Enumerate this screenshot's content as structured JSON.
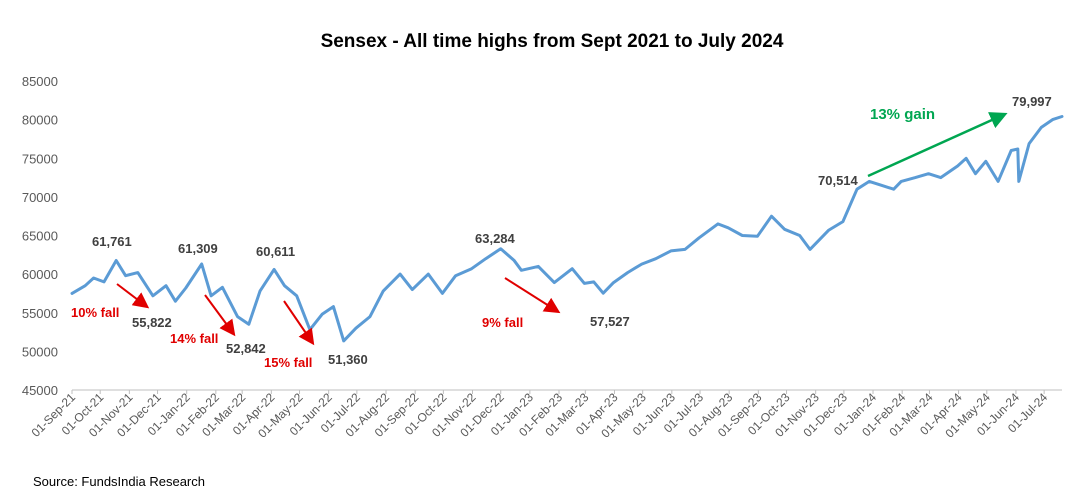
{
  "chart_data": {
    "type": "line",
    "title": "Sensex - All time highs from Sept 2021 to July 2024",
    "xlabel": "",
    "ylabel": "",
    "ylim": [
      45000,
      85000
    ],
    "yticks": [
      "85000",
      "80000",
      "75000",
      "70000",
      "65000",
      "60000",
      "55000",
      "50000",
      "45000"
    ],
    "x_range": [
      "2021-09-01",
      "2024-07-20"
    ],
    "xticks": [
      "01-Sep-21",
      "01-Oct-21",
      "01-Nov-21",
      "01-Dec-21",
      "01-Jan-22",
      "01-Feb-22",
      "01-Mar-22",
      "01-Apr-22",
      "01-May-22",
      "01-Jun-22",
      "01-Jul-22",
      "01-Aug-22",
      "01-Sep-22",
      "01-Oct-22",
      "01-Nov-22",
      "01-Dec-22",
      "01-Jan-23",
      "01-Feb-23",
      "01-Mar-23",
      "01-Apr-23",
      "01-May-23",
      "01-Jun-23",
      "01-Jul-23",
      "01-Aug-23",
      "01-Sep-23",
      "01-Oct-23",
      "01-Nov-23",
      "01-Dec-23",
      "01-Jan-24",
      "01-Feb-24",
      "01-Mar-24",
      "01-Apr-24",
      "01-May-24",
      "01-Jun-24",
      "01-Jul-24"
    ],
    "grid": false,
    "series_color": "#5b9bd5",
    "series": [
      {
        "name": "",
        "x": [
          "2021-09-01",
          "2021-09-15",
          "2021-09-24",
          "2021-10-05",
          "2021-10-18",
          "2021-10-28",
          "2021-11-10",
          "2021-11-26",
          "2021-12-10",
          "2021-12-20",
          "2021-12-31",
          "2022-01-17",
          "2022-01-27",
          "2022-02-08",
          "2022-02-24",
          "2022-03-08",
          "2022-03-20",
          "2022-04-04",
          "2022-04-15",
          "2022-04-28",
          "2022-05-12",
          "2022-05-25",
          "2022-06-06",
          "2022-06-17",
          "2022-06-30",
          "2022-07-15",
          "2022-07-29",
          "2022-08-16",
          "2022-08-29",
          "2022-09-15",
          "2022-09-30",
          "2022-10-14",
          "2022-10-31",
          "2022-11-15",
          "2022-12-01",
          "2022-12-15",
          "2022-12-23",
          "2023-01-10",
          "2023-01-27",
          "2023-02-15",
          "2023-02-28",
          "2023-03-10",
          "2023-03-20",
          "2023-03-31",
          "2023-04-15",
          "2023-04-30",
          "2023-05-15",
          "2023-05-31",
          "2023-06-15",
          "2023-06-30",
          "2023-07-20",
          "2023-07-31",
          "2023-08-15",
          "2023-08-31",
          "2023-09-15",
          "2023-09-29",
          "2023-10-15",
          "2023-10-26",
          "2023-11-15",
          "2023-11-30",
          "2023-12-15",
          "2023-12-28",
          "2024-01-10",
          "2024-01-23",
          "2024-01-31",
          "2024-02-15",
          "2024-02-29",
          "2024-03-13",
          "2024-03-31",
          "2024-04-09",
          "2024-04-19",
          "2024-04-30",
          "2024-05-13",
          "2024-05-27",
          "2024-06-03",
          "2024-06-04",
          "2024-06-15",
          "2024-06-28",
          "2024-07-10",
          "2024-07-20"
        ],
        "values": [
          57500,
          58500,
          59500,
          59000,
          61761,
          59800,
          60200,
          57200,
          58500,
          56500,
          58200,
          61309,
          57200,
          58300,
          54500,
          53500,
          57800,
          60611,
          58500,
          57200,
          52800,
          54800,
          55800,
          51360,
          53000,
          54500,
          57800,
          60000,
          58000,
          60000,
          57500,
          59800,
          60700,
          62000,
          63284,
          61800,
          60500,
          61000,
          58900,
          60700,
          58800,
          59000,
          57527,
          58900,
          60200,
          61300,
          62000,
          63000,
          63200,
          64700,
          66500,
          66000,
          65000,
          64900,
          67500,
          65800,
          65000,
          63200,
          65700,
          66800,
          71000,
          72000,
          71500,
          71000,
          72000,
          72500,
          73000,
          72500,
          74000,
          75000,
          73000,
          74600,
          72000,
          76000,
          76200,
          72000,
          76900,
          79000,
          80000,
          80400
        ]
      }
    ],
    "annotations": [
      {
        "text": "61,761",
        "style": "value"
      },
      {
        "text": "61,309",
        "style": "value"
      },
      {
        "text": "60,611",
        "style": "value"
      },
      {
        "text": "63,284",
        "style": "value"
      },
      {
        "text": "70,514",
        "style": "value"
      },
      {
        "text": "79,997",
        "style": "value"
      },
      {
        "text": "55,822",
        "style": "value"
      },
      {
        "text": "52,842",
        "style": "value"
      },
      {
        "text": "51,360",
        "style": "value"
      },
      {
        "text": "57,527",
        "style": "value"
      },
      {
        "text": "10% fall",
        "style": "fall"
      },
      {
        "text": "14% fall",
        "style": "fall"
      },
      {
        "text": "15% fall",
        "style": "fall"
      },
      {
        "text": "9% fall",
        "style": "fall"
      },
      {
        "text": "13% gain",
        "style": "gain"
      }
    ],
    "colors": {
      "fall": "#e00000",
      "gain": "#00a651"
    }
  },
  "source": "Source: FundsIndia Research"
}
